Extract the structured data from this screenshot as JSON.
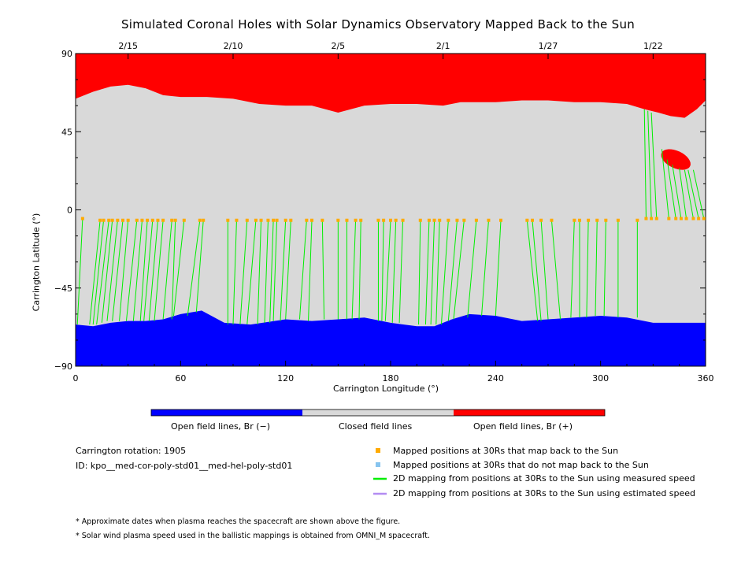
{
  "title": "Simulated Coronal Holes with Solar Dynamics Observatory Mapped Back to the Sun",
  "chart_data": {
    "type": "scatter",
    "xlabel": "Carrington Longitude (°)",
    "ylabel": "Carrington Latitude (°)",
    "xlim": [
      0,
      360
    ],
    "ylim": [
      -90,
      90
    ],
    "x_ticks": [
      0,
      60,
      120,
      180,
      240,
      300,
      360
    ],
    "y_ticks": [
      -90,
      -45,
      0,
      45,
      90
    ],
    "y_tick_labels": [
      "−90",
      "−45",
      "0",
      "45",
      "90"
    ],
    "top_axis_dates": [
      {
        "label": "2/15",
        "lon": 30
      },
      {
        "label": "2/10",
        "lon": 90
      },
      {
        "label": "2/5",
        "lon": 150
      },
      {
        "label": "2/1",
        "lon": 210
      },
      {
        "label": "1/27",
        "lon": 270
      },
      {
        "label": "1/22",
        "lon": 330
      }
    ],
    "regions": {
      "north_boundary": [
        [
          0,
          64
        ],
        [
          10,
          68
        ],
        [
          20,
          71
        ],
        [
          30,
          72
        ],
        [
          40,
          70
        ],
        [
          50,
          66
        ],
        [
          60,
          65
        ],
        [
          75,
          65
        ],
        [
          90,
          64
        ],
        [
          105,
          61
        ],
        [
          120,
          60
        ],
        [
          135,
          60
        ],
        [
          150,
          56
        ],
        [
          165,
          60
        ],
        [
          180,
          61
        ],
        [
          195,
          61
        ],
        [
          210,
          60
        ],
        [
          220,
          62
        ],
        [
          240,
          62
        ],
        [
          255,
          63
        ],
        [
          270,
          63
        ],
        [
          285,
          62
        ],
        [
          300,
          62
        ],
        [
          315,
          61
        ],
        [
          325,
          58
        ],
        [
          333,
          56
        ],
        [
          340,
          54
        ],
        [
          348,
          53
        ],
        [
          355,
          58
        ],
        [
          360,
          63
        ]
      ],
      "south_boundary": [
        [
          0,
          -66
        ],
        [
          10,
          -67
        ],
        [
          20,
          -65
        ],
        [
          30,
          -64
        ],
        [
          40,
          -64
        ],
        [
          50,
          -63
        ],
        [
          60,
          -60
        ],
        [
          72,
          -58
        ],
        [
          85,
          -65
        ],
        [
          100,
          -66
        ],
        [
          120,
          -63
        ],
        [
          135,
          -64
        ],
        [
          150,
          -63
        ],
        [
          165,
          -62
        ],
        [
          180,
          -65
        ],
        [
          195,
          -67
        ],
        [
          205,
          -67
        ],
        [
          215,
          -63
        ],
        [
          225,
          -60
        ],
        [
          240,
          -61
        ],
        [
          255,
          -64
        ],
        [
          270,
          -63
        ],
        [
          285,
          -62
        ],
        [
          300,
          -61
        ],
        [
          315,
          -62
        ],
        [
          330,
          -65
        ],
        [
          345,
          -65
        ],
        [
          360,
          -65
        ]
      ],
      "positive_patch": {
        "lon": 343,
        "lat": 29,
        "half_width_lon": 9,
        "half_height_lat": 5
      }
    },
    "mapped_positions": [
      {
        "lon": 4,
        "lat": -5,
        "foot_lon": 1,
        "foot_lat": -66
      },
      {
        "lon": 14,
        "lat": -6,
        "foot_lon": 8,
        "foot_lat": -66
      },
      {
        "lon": 16,
        "lat": -6,
        "foot_lon": 10,
        "foot_lat": -66
      },
      {
        "lon": 19,
        "lat": -6,
        "foot_lon": 12,
        "foot_lat": -66
      },
      {
        "lon": 21,
        "lat": -6,
        "foot_lon": 15,
        "foot_lat": -65
      },
      {
        "lon": 24,
        "lat": -6,
        "foot_lon": 18,
        "foot_lat": -64
      },
      {
        "lon": 27,
        "lat": -6,
        "foot_lon": 21,
        "foot_lat": -64
      },
      {
        "lon": 30,
        "lat": -6,
        "foot_lon": 25,
        "foot_lat": -64
      },
      {
        "lon": 35,
        "lat": -6,
        "foot_lon": 29,
        "foot_lat": -64
      },
      {
        "lon": 38,
        "lat": -6,
        "foot_lon": 33,
        "foot_lat": -64
      },
      {
        "lon": 41,
        "lat": -6,
        "foot_lon": 37,
        "foot_lat": -64
      },
      {
        "lon": 44,
        "lat": -6,
        "foot_lon": 39,
        "foot_lat": -64
      },
      {
        "lon": 47,
        "lat": -6,
        "foot_lon": 42,
        "foot_lat": -64
      },
      {
        "lon": 50,
        "lat": -6,
        "foot_lon": 45,
        "foot_lat": -64
      },
      {
        "lon": 55,
        "lat": -6,
        "foot_lon": 50,
        "foot_lat": -63
      },
      {
        "lon": 57,
        "lat": -6,
        "foot_lon": 55,
        "foot_lat": -63
      },
      {
        "lon": 62,
        "lat": -6,
        "foot_lon": 56,
        "foot_lat": -61
      },
      {
        "lon": 71,
        "lat": -6,
        "foot_lon": 64,
        "foot_lat": -61
      },
      {
        "lon": 73,
        "lat": -6,
        "foot_lon": 69,
        "foot_lat": -59
      },
      {
        "lon": 87,
        "lat": -6,
        "foot_lon": 87,
        "foot_lat": -66
      },
      {
        "lon": 92,
        "lat": -6,
        "foot_lon": 90,
        "foot_lat": -66
      },
      {
        "lon": 98,
        "lat": -6,
        "foot_lon": 94,
        "foot_lat": -66
      },
      {
        "lon": 103,
        "lat": -6,
        "foot_lon": 98,
        "foot_lat": -66
      },
      {
        "lon": 106,
        "lat": -6,
        "foot_lon": 104,
        "foot_lat": -66
      },
      {
        "lon": 110,
        "lat": -6,
        "foot_lon": 108,
        "foot_lat": -65
      },
      {
        "lon": 113,
        "lat": -6,
        "foot_lon": 111,
        "foot_lat": -65
      },
      {
        "lon": 115,
        "lat": -6,
        "foot_lon": 113,
        "foot_lat": -64
      },
      {
        "lon": 120,
        "lat": -6,
        "foot_lon": 117,
        "foot_lat": -64
      },
      {
        "lon": 123,
        "lat": -6,
        "foot_lon": 120,
        "foot_lat": -63
      },
      {
        "lon": 132,
        "lat": -6,
        "foot_lon": 128,
        "foot_lat": -63
      },
      {
        "lon": 135,
        "lat": -6,
        "foot_lon": 133,
        "foot_lat": -64
      },
      {
        "lon": 141,
        "lat": -6,
        "foot_lon": 142,
        "foot_lat": -63
      },
      {
        "lon": 150,
        "lat": -6,
        "foot_lon": 150,
        "foot_lat": -63
      },
      {
        "lon": 155,
        "lat": -6,
        "foot_lon": 155,
        "foot_lat": -63
      },
      {
        "lon": 160,
        "lat": -6,
        "foot_lon": 158,
        "foot_lat": -63
      },
      {
        "lon": 163,
        "lat": -6,
        "foot_lon": 162,
        "foot_lat": -63
      },
      {
        "lon": 173,
        "lat": -6,
        "foot_lon": 173,
        "foot_lat": -64
      },
      {
        "lon": 176,
        "lat": -6,
        "foot_lon": 175,
        "foot_lat": -64
      },
      {
        "lon": 180,
        "lat": -6,
        "foot_lon": 177,
        "foot_lat": -64
      },
      {
        "lon": 183,
        "lat": -6,
        "foot_lon": 181,
        "foot_lat": -65
      },
      {
        "lon": 187,
        "lat": -6,
        "foot_lon": 185,
        "foot_lat": -65
      },
      {
        "lon": 197,
        "lat": -6,
        "foot_lon": 196,
        "foot_lat": -66
      },
      {
        "lon": 202,
        "lat": -6,
        "foot_lon": 200,
        "foot_lat": -66
      },
      {
        "lon": 205,
        "lat": -6,
        "foot_lon": 203,
        "foot_lat": -66
      },
      {
        "lon": 208,
        "lat": -6,
        "foot_lon": 206,
        "foot_lat": -66
      },
      {
        "lon": 213,
        "lat": -6,
        "foot_lon": 209,
        "foot_lat": -66
      },
      {
        "lon": 218,
        "lat": -6,
        "foot_lon": 213,
        "foot_lat": -64
      },
      {
        "lon": 222,
        "lat": -6,
        "foot_lon": 216,
        "foot_lat": -63
      },
      {
        "lon": 229,
        "lat": -6,
        "foot_lon": 224,
        "foot_lat": -62
      },
      {
        "lon": 236,
        "lat": -6,
        "foot_lon": 232,
        "foot_lat": -61
      },
      {
        "lon": 243,
        "lat": -6,
        "foot_lon": 240,
        "foot_lat": -61
      },
      {
        "lon": 258,
        "lat": -6,
        "foot_lon": 264,
        "foot_lat": -64
      },
      {
        "lon": 261,
        "lat": -6,
        "foot_lon": 266,
        "foot_lat": -64
      },
      {
        "lon": 266,
        "lat": -6,
        "foot_lon": 270,
        "foot_lat": -63
      },
      {
        "lon": 272,
        "lat": -6,
        "foot_lon": 277,
        "foot_lat": -63
      },
      {
        "lon": 285,
        "lat": -6,
        "foot_lon": 283,
        "foot_lat": -62
      },
      {
        "lon": 288,
        "lat": -6,
        "foot_lon": 288,
        "foot_lat": -62
      },
      {
        "lon": 293,
        "lat": -6,
        "foot_lon": 292,
        "foot_lat": -62
      },
      {
        "lon": 298,
        "lat": -6,
        "foot_lon": 297,
        "foot_lat": -61
      },
      {
        "lon": 303,
        "lat": -6,
        "foot_lon": 302,
        "foot_lat": -61
      },
      {
        "lon": 310,
        "lat": -6,
        "foot_lon": 310,
        "foot_lat": -62
      },
      {
        "lon": 321,
        "lat": -6,
        "foot_lon": 321,
        "foot_lat": -62
      },
      {
        "lon": 326,
        "lat": -5,
        "foot_lon": 325,
        "foot_lat": 58
      },
      {
        "lon": 329,
        "lat": -5,
        "foot_lon": 327,
        "foot_lat": 57
      },
      {
        "lon": 332,
        "lat": -5,
        "foot_lon": 329,
        "foot_lat": 56
      },
      {
        "lon": 339,
        "lat": -5,
        "foot_lon": 335,
        "foot_lat": 35
      },
      {
        "lon": 343,
        "lat": -5,
        "foot_lon": 338,
        "foot_lat": 29
      },
      {
        "lon": 346,
        "lat": -5,
        "foot_lon": 341,
        "foot_lat": 26
      },
      {
        "lon": 349,
        "lat": -5,
        "foot_lon": 345,
        "foot_lat": 24
      },
      {
        "lon": 353,
        "lat": -5,
        "foot_lon": 348,
        "foot_lat": 23
      },
      {
        "lon": 356,
        "lat": -5,
        "foot_lon": 350,
        "foot_lat": 23
      },
      {
        "lon": 359,
        "lat": -5,
        "foot_lon": 353,
        "foot_lat": 23
      }
    ],
    "colors": {
      "negative": "#0000ff",
      "closed": "#d9d9d9",
      "positive": "#ff0000",
      "mapped": "#ffaa00",
      "unmapped": "#87c4ef",
      "measured": "#00ee00",
      "estimated": "#b38cf2"
    }
  },
  "colorbar": {
    "labels": [
      "Open field lines, Br (−)",
      "Closed field lines",
      "Open field lines, Br (+)"
    ]
  },
  "info": {
    "rotation": "Carrington rotation: 1905",
    "id": "ID: kpo__med-cor-poly-std01__med-hel-poly-std01"
  },
  "legend": [
    {
      "symbol": "square",
      "color": "#ffaa00",
      "label": "Mapped positions at 30Rs that map back to the Sun"
    },
    {
      "symbol": "square",
      "color": "#87c4ef",
      "label": "Mapped positions at 30Rs that do not map back to the Sun"
    },
    {
      "symbol": "line",
      "color": "#00ee00",
      "label": "2D mapping from positions at 30Rs to the Sun using measured speed"
    },
    {
      "symbol": "line",
      "color": "#b38cf2",
      "label": "2D mapping from positions at 30Rs to the Sun using estimated speed"
    }
  ],
  "notes": [
    "* Approximate dates when plasma reaches the spacecraft are shown above the figure.",
    "* Solar wind plasma speed used in the ballistic mappings is obtained from OMNI_M spacecraft."
  ]
}
